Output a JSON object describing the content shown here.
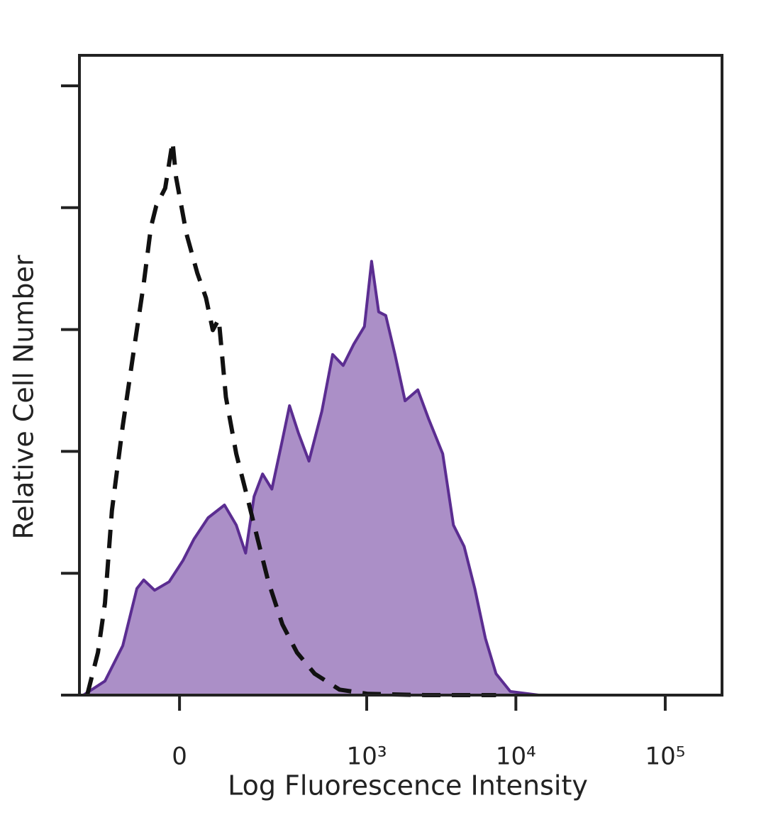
{
  "chart_data": {
    "type": "histogram-overlay",
    "x_label": "Log Fluorescence Intensity",
    "y_label": "Relative Cell Number",
    "xscale": "biexponential",
    "xlim": [
      -250,
      240000
    ],
    "ylim": [
      0,
      105
    ],
    "xticks": [
      0,
      {
        "value": 1000,
        "label": "10³"
      },
      {
        "value": 10000,
        "label": "10⁴"
      },
      {
        "value": 100000,
        "label": "10⁵"
      }
    ],
    "yticks": [
      0,
      20,
      40,
      60,
      80,
      100
    ],
    "series": [
      {
        "color": "#5b2d91",
        "fill_color": "#ab8fc7",
        "fill": true,
        "dashed": false,
        "x": [
          -234,
          -159,
          -111,
          -79,
          -65,
          -44,
          -18,
          6,
          25,
          51,
          84,
          111,
          135,
          159,
          186,
          219,
          262,
          295,
          340,
          404,
          496,
          588,
          693,
          818,
          965,
          1078,
          1204,
          1344,
          1550,
          1810,
          2204,
          2598,
          3237,
          3819,
          4502,
          5309,
          6250,
          7370,
          9173,
          14213,
          232848
        ],
        "values": [
          0,
          2.3,
          8.1,
          17.5,
          18.9,
          17.2,
          18.6,
          22.1,
          25.6,
          29.1,
          31.2,
          27.9,
          23.3,
          32.6,
          36.3,
          33.8,
          41.9,
          47.5,
          43.1,
          38.4,
          46.6,
          55.9,
          54.1,
          57.6,
          60.5,
          71.2,
          62.9,
          62.3,
          55.9,
          48.3,
          50.1,
          45.4,
          39.6,
          27.9,
          24.4,
          17.5,
          9.3,
          3.5,
          0.6,
          0,
          0
        ]
      },
      {
        "color": "#111111",
        "fill": false,
        "dashed": true,
        "x": [
          -219,
          -181,
          -159,
          -139,
          -111,
          -87,
          -65,
          -51,
          -41,
          -25,
          -12,
          -6,
          12,
          31,
          47,
          60,
          72,
          87,
          111,
          139,
          170,
          206,
          262,
          333,
          443,
          656,
          1020,
          2459,
          7370
        ],
        "values": [
          0,
          7.0,
          15.1,
          30.3,
          44.2,
          55.9,
          67.5,
          76.8,
          80.3,
          83.2,
          90.8,
          85.0,
          75.7,
          69.3,
          65.2,
          59.9,
          61.7,
          48.9,
          39.6,
          32.6,
          25.6,
          18.6,
          11.6,
          7.0,
          3.5,
          0.9,
          0.2,
          0,
          0
        ]
      }
    ]
  }
}
